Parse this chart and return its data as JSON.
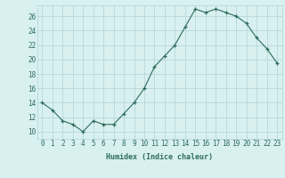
{
  "humidex": [
    14,
    13,
    11.5,
    11,
    10,
    11.5,
    11,
    11,
    12.5,
    14,
    16,
    19,
    20.5,
    22,
    24.5,
    27,
    26.5,
    27,
    26.5,
    26,
    25,
    23,
    21.5,
    19.5
  ],
  "xlabel": "Humidex (Indice chaleur)",
  "line_color": "#2e6b5e",
  "bg_color": "#d8f0f0",
  "grid_color": "#b8d8d8",
  "xlim": [
    -0.5,
    23.5
  ],
  "ylim": [
    9,
    27.5
  ],
  "yticks": [
    10,
    12,
    14,
    16,
    18,
    20,
    22,
    24,
    26
  ],
  "xtick_labels": [
    "0",
    "1",
    "2",
    "3",
    "4",
    "5",
    "6",
    "7",
    "8",
    "9",
    "10",
    "11",
    "12",
    "13",
    "14",
    "15",
    "16",
    "17",
    "18",
    "19",
    "20",
    "21",
    "22",
    "23"
  ],
  "tick_fontsize": 5.5,
  "xlabel_fontsize": 6.0
}
